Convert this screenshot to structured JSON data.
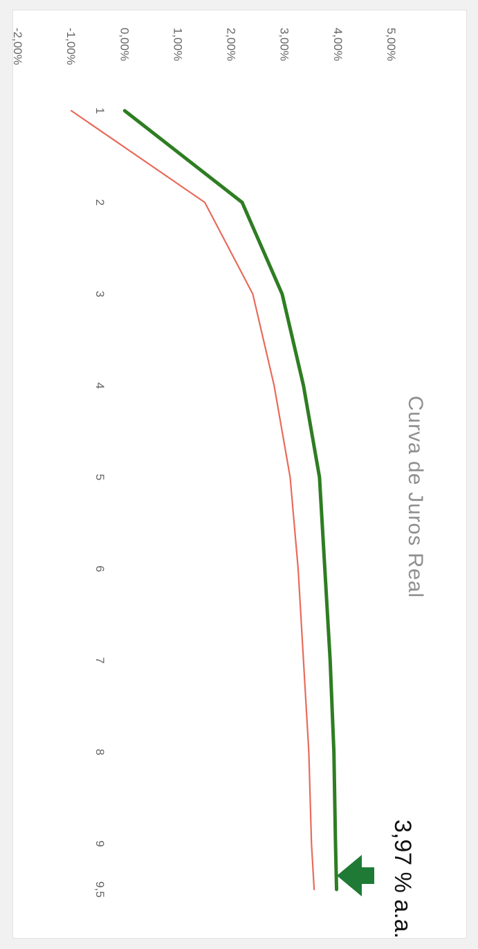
{
  "chart_data": {
    "type": "line",
    "title": "Curva de Juros Real",
    "categories": [
      "1",
      "2",
      "3",
      "4",
      "5",
      "6",
      "7",
      "8",
      "9",
      "9,5"
    ],
    "y_ticks": [
      "5,00%",
      "4,00%",
      "3,00%",
      "2,00%",
      "1,00%",
      "0,00%",
      "-1,00%",
      "-2,00%"
    ],
    "ylim": [
      -2,
      5
    ],
    "grid": false,
    "orientation": "rotated 90° clockwise",
    "series": [
      {
        "color": "#2e7d22",
        "values": [
          0.0,
          2.2,
          2.95,
          3.35,
          3.65,
          3.75,
          3.85,
          3.92,
          3.95,
          3.97
        ]
      },
      {
        "color": "#e86a5a",
        "values": [
          -1.0,
          1.5,
          2.4,
          2.8,
          3.1,
          3.25,
          3.35,
          3.45,
          3.5,
          3.55
        ]
      }
    ]
  },
  "annotation": {
    "text": "3,97 % a.a.",
    "arrow_color": "#1e7a35"
  }
}
